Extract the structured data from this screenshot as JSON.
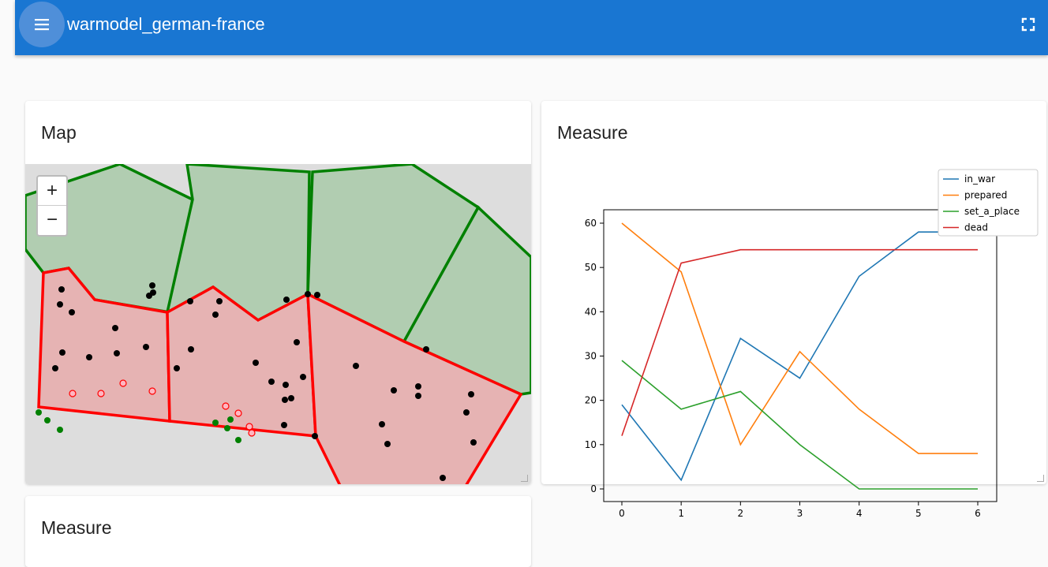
{
  "appbar": {
    "title": "warmodel_german-france",
    "menu_icon": "hamburger-menu-icon",
    "fullscreen_icon": "fullscreen-icon"
  },
  "cards": {
    "map_title": "Map",
    "measure_title": "Measure",
    "measure2_title": "Measure"
  },
  "map": {
    "zoom_in_label": "+",
    "zoom_out_label": "−",
    "colors": {
      "green_fill": "#b1cdb1",
      "green_stroke": "#008000",
      "red_fill": "#e6b3b3",
      "red_stroke": "#ff0000",
      "dot": "#000000",
      "pink_dot": "#ffb6c1",
      "green_dot": "#008000"
    }
  },
  "chart_data": {
    "type": "line",
    "x": [
      0,
      1,
      2,
      3,
      4,
      5,
      6
    ],
    "xlim": [
      0,
      6
    ],
    "ylim": [
      0,
      60
    ],
    "xticks": [
      0,
      1,
      2,
      3,
      4,
      5,
      6
    ],
    "yticks": [
      0,
      10,
      20,
      30,
      40,
      50,
      60
    ],
    "legend_position": "top-right",
    "grid": false,
    "series": [
      {
        "name": "in_war",
        "color": "#1f77b4",
        "values": [
          19,
          2,
          34,
          25,
          48,
          58,
          58
        ]
      },
      {
        "name": "prepared",
        "color": "#ff7f0e",
        "values": [
          60,
          49,
          10,
          31,
          18,
          8,
          8
        ]
      },
      {
        "name": "set_a_place",
        "color": "#2ca02c",
        "values": [
          29,
          18,
          22,
          10,
          0,
          0,
          0
        ]
      },
      {
        "name": "dead",
        "color": "#d62728",
        "values": [
          12,
          51,
          54,
          54,
          54,
          54,
          54
        ]
      }
    ]
  }
}
